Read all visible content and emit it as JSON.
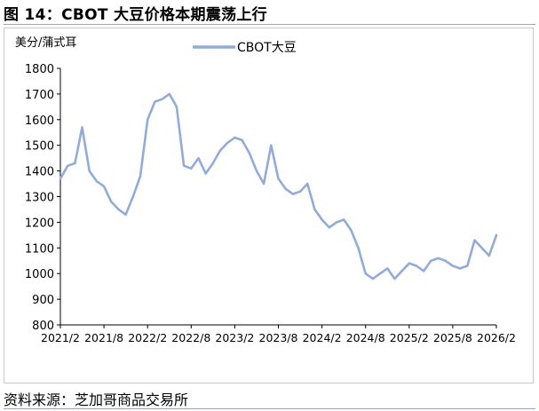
{
  "figure": {
    "title": "图 14：CBOT 大豆价格本期震荡上行",
    "source": "资料来源：芝加哥商品交易所"
  },
  "colors": {
    "series": "#92abd8",
    "axis": "#000000",
    "frame": "#c8c8c8"
  },
  "chart_data": {
    "type": "line",
    "unit_label": "美分/蒲式耳",
    "ylim": [
      800,
      1800
    ],
    "yticks": [
      800,
      900,
      1000,
      1100,
      1200,
      1300,
      1400,
      1500,
      1600,
      1700,
      1800
    ],
    "xticks": [
      "2021/2",
      "2021/8",
      "2022/2",
      "2022/8",
      "2023/2",
      "2023/8",
      "2024/2",
      "2024/8",
      "2025/2",
      "2025/8",
      "2026/2"
    ],
    "grid": false,
    "legend": "top-center",
    "series": [
      {
        "name": "CBOT大豆",
        "x": [
          "2021/2",
          "2021/3",
          "2021/4",
          "2021/5",
          "2021/6",
          "2021/7",
          "2021/8",
          "2021/9",
          "2021/10",
          "2021/11",
          "2021/12",
          "2022/1",
          "2022/2",
          "2022/3",
          "2022/4",
          "2022/5",
          "2022/6",
          "2022/7",
          "2022/8",
          "2022/9",
          "2022/10",
          "2022/11",
          "2022/12",
          "2023/1",
          "2023/2",
          "2023/3",
          "2023/4",
          "2023/5",
          "2023/6",
          "2023/7",
          "2023/8",
          "2023/9",
          "2023/10",
          "2023/11",
          "2023/12",
          "2024/1",
          "2024/2",
          "2024/3",
          "2024/4",
          "2024/5",
          "2024/6",
          "2024/7",
          "2024/8",
          "2024/9",
          "2024/10",
          "2024/11",
          "2024/12",
          "2025/1",
          "2025/2",
          "2025/3",
          "2025/4",
          "2025/5",
          "2025/6",
          "2025/7",
          "2025/8",
          "2025/9",
          "2025/10",
          "2025/11",
          "2025/12",
          "2026/1",
          "2026/2"
        ],
        "values": [
          1370,
          1420,
          1430,
          1570,
          1400,
          1360,
          1340,
          1280,
          1250,
          1230,
          1300,
          1380,
          1600,
          1670,
          1680,
          1700,
          1650,
          1420,
          1410,
          1450,
          1390,
          1430,
          1480,
          1510,
          1530,
          1520,
          1470,
          1400,
          1350,
          1500,
          1370,
          1330,
          1310,
          1320,
          1350,
          1250,
          1210,
          1180,
          1200,
          1210,
          1170,
          1100,
          1000,
          980,
          1000,
          1020,
          980,
          1010,
          1040,
          1030,
          1010,
          1050,
          1060,
          1050,
          1030,
          1020,
          1030,
          1130,
          1100,
          1070,
          1150
        ]
      }
    ]
  }
}
